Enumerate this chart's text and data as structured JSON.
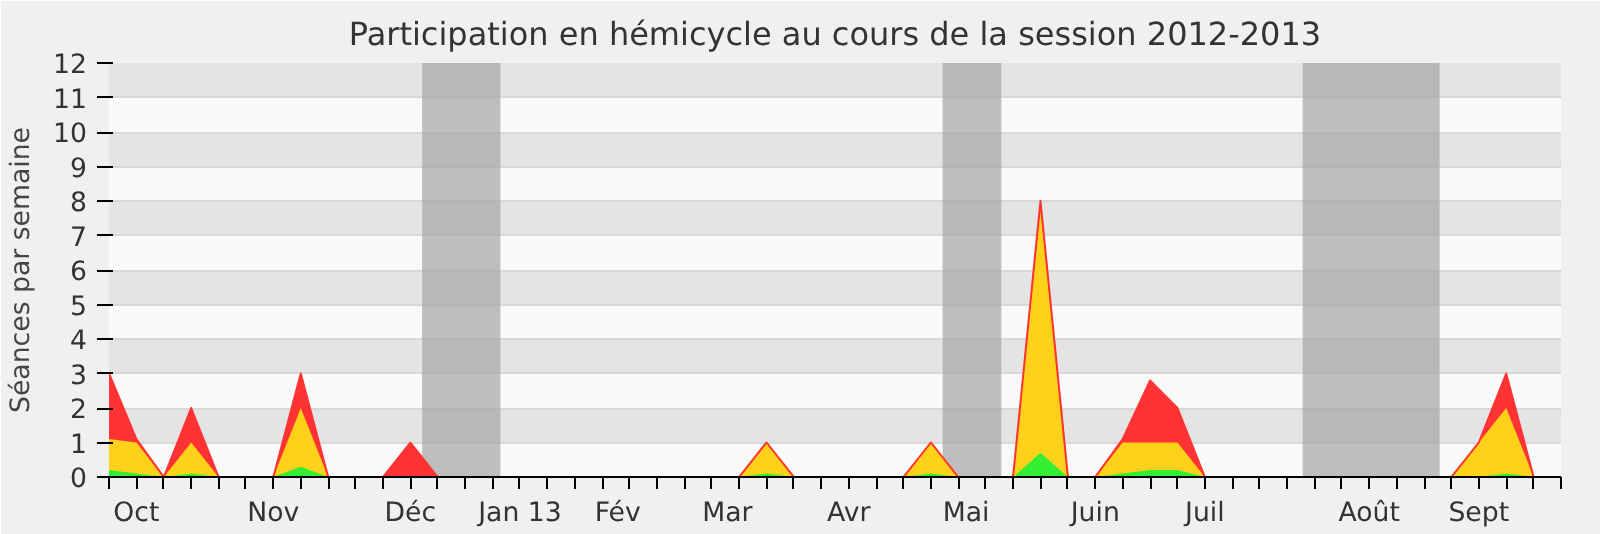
{
  "chart_data": {
    "type": "area",
    "stacked": true,
    "title": "Participation en hémicycle au cours de la session 2012-2013",
    "ylabel": "Séances par semaine",
    "x": [
      "2012-09-24",
      "2012-10-01",
      "2012-10-08",
      "2012-10-15",
      "2012-10-22",
      "2012-10-29",
      "2012-11-05",
      "2012-11-12",
      "2012-11-19",
      "2012-11-26",
      "2012-12-03",
      "2012-12-10",
      "2012-12-17",
      "2012-12-24",
      "2012-12-31",
      "2013-01-07",
      "2013-01-14",
      "2013-01-21",
      "2013-01-28",
      "2013-02-04",
      "2013-02-11",
      "2013-02-18",
      "2013-02-25",
      "2013-03-04",
      "2013-03-11",
      "2013-03-18",
      "2013-03-25",
      "2013-04-01",
      "2013-04-08",
      "2013-04-15",
      "2013-04-22",
      "2013-04-29",
      "2013-05-06",
      "2013-05-13",
      "2013-05-20",
      "2013-05-27",
      "2013-06-03",
      "2013-06-10",
      "2013-06-17",
      "2013-06-24",
      "2013-07-01",
      "2013-07-08",
      "2013-07-15",
      "2013-07-22",
      "2013-07-29",
      "2013-08-05",
      "2013-08-12",
      "2013-08-19",
      "2013-08-26",
      "2013-09-02",
      "2013-09-09",
      "2013-09-16",
      "2013-09-23"
    ],
    "series": [
      {
        "color": "#33ee33",
        "values": [
          0.2,
          0.1,
          0,
          0.1,
          0,
          0,
          0,
          0.3,
          0,
          0,
          0,
          0,
          0,
          0,
          0,
          0,
          0,
          0,
          0,
          0,
          0,
          0,
          0,
          0,
          0.1,
          0,
          0,
          0,
          0,
          0,
          0.1,
          0,
          0,
          0,
          0.7,
          0,
          0,
          0.1,
          0.2,
          0.2,
          0,
          0,
          0,
          0,
          0,
          0,
          0,
          0,
          0,
          0,
          0,
          0.1,
          0
        ]
      },
      {
        "color": "#ffd11a",
        "values": [
          0.9,
          0.9,
          0,
          0.9,
          0,
          0,
          0,
          1.7,
          0,
          0,
          0,
          0,
          0,
          0,
          0,
          0,
          0,
          0,
          0,
          0,
          0,
          0,
          0,
          0,
          0.9,
          0,
          0,
          0,
          0,
          0,
          0.9,
          0,
          0,
          0,
          7.1,
          0,
          0,
          0.9,
          0.8,
          0.8,
          0,
          0,
          0,
          0,
          0,
          0,
          0,
          0,
          0,
          0,
          1.0,
          1.9,
          0
        ]
      },
      {
        "color": "#ff3333",
        "values": [
          1.9,
          0.1,
          0,
          1.0,
          0,
          0,
          0,
          1.0,
          0,
          0,
          0,
          1.0,
          0,
          0,
          0,
          0,
          0,
          0,
          0,
          0,
          0,
          0,
          0,
          0,
          0,
          0,
          0,
          0,
          0,
          0,
          0,
          0,
          0,
          0,
          0.2,
          0,
          0,
          0.1,
          1.8,
          1.0,
          0,
          0,
          0,
          0,
          0,
          0,
          0,
          0,
          0,
          0,
          0,
          1.0,
          0
        ]
      }
    ],
    "xlim": [
      "2012-09-24",
      "2013-09-30"
    ],
    "ylim": [
      0,
      12
    ],
    "xticks": [
      {
        "value": "2012-10-01",
        "label": "Oct"
      },
      {
        "value": "2012-11-05",
        "label": "Nov"
      },
      {
        "value": "2012-12-10",
        "label": "Déc"
      },
      {
        "value": "2013-01-07",
        "label": "Jan 13"
      },
      {
        "value": "2013-02-01",
        "label": "Fév"
      },
      {
        "value": "2013-03-01",
        "label": "Mar"
      },
      {
        "value": "2013-04-01",
        "label": "Avr"
      },
      {
        "value": "2013-05-01",
        "label": "Mai"
      },
      {
        "value": "2013-06-03",
        "label": "Juin"
      },
      {
        "value": "2013-07-01",
        "label": "Juil"
      },
      {
        "value": "2013-08-12",
        "label": "Août"
      },
      {
        "value": "2013-09-09",
        "label": "Sept"
      },
      {
        "value": "2012-09-24",
        "label": null
      },
      {
        "value": "2012-10-01",
        "label": null
      },
      {
        "value": "2012-10-08",
        "label": null
      },
      {
        "value": "2012-10-15",
        "label": null
      },
      {
        "value": "2012-10-22",
        "label": null
      },
      {
        "value": "2012-10-29",
        "label": null
      },
      {
        "value": "2012-11-05",
        "label": null
      },
      {
        "value": "2012-11-12",
        "label": null
      },
      {
        "value": "2012-11-19",
        "label": null
      },
      {
        "value": "2012-11-26",
        "label": null
      },
      {
        "value": "2012-12-03",
        "label": null
      },
      {
        "value": "2012-12-10",
        "label": null
      },
      {
        "value": "2012-12-17",
        "label": null
      },
      {
        "value": "2012-12-24",
        "label": null
      },
      {
        "value": "2012-12-31",
        "label": null
      },
      {
        "value": "2013-01-07",
        "label": null
      },
      {
        "value": "2013-01-14",
        "label": null
      },
      {
        "value": "2013-01-21",
        "label": null
      },
      {
        "value": "2013-01-28",
        "label": null
      },
      {
        "value": "2013-02-04",
        "label": null
      },
      {
        "value": "2013-02-11",
        "label": null
      },
      {
        "value": "2013-02-18",
        "label": null
      },
      {
        "value": "2013-02-25",
        "label": null
      },
      {
        "value": "2013-03-04",
        "label": null
      },
      {
        "value": "2013-03-11",
        "label": null
      },
      {
        "value": "2013-03-18",
        "label": null
      },
      {
        "value": "2013-03-25",
        "label": null
      },
      {
        "value": "2013-04-01",
        "label": null
      },
      {
        "value": "2013-04-08",
        "label": null
      },
      {
        "value": "2013-04-15",
        "label": null
      },
      {
        "value": "2013-04-22",
        "label": null
      },
      {
        "value": "2013-04-29",
        "label": null
      },
      {
        "value": "2013-05-06",
        "label": null
      },
      {
        "value": "2013-05-13",
        "label": null
      },
      {
        "value": "2013-05-20",
        "label": null
      },
      {
        "value": "2013-05-27",
        "label": null
      },
      {
        "value": "2013-06-03",
        "label": null
      },
      {
        "value": "2013-06-10",
        "label": null
      },
      {
        "value": "2013-06-17",
        "label": null
      },
      {
        "value": "2013-06-24",
        "label": null
      },
      {
        "value": "2013-07-01",
        "label": null
      },
      {
        "value": "2013-07-08",
        "label": null
      },
      {
        "value": "2013-07-15",
        "label": null
      },
      {
        "value": "2013-07-22",
        "label": null
      },
      {
        "value": "2013-07-29",
        "label": null
      },
      {
        "value": "2013-08-05",
        "label": null
      },
      {
        "value": "2013-08-12",
        "label": null
      },
      {
        "value": "2013-08-19",
        "label": null
      },
      {
        "value": "2013-08-26",
        "label": null
      },
      {
        "value": "2013-09-02",
        "label": null
      },
      {
        "value": "2013-09-09",
        "label": null
      },
      {
        "value": "2013-09-16",
        "label": null
      },
      {
        "value": "2013-09-23",
        "label": null
      },
      {
        "value": "2013-09-30",
        "label": null
      }
    ],
    "yticks": [
      0,
      1,
      2,
      3,
      4,
      5,
      6,
      7,
      8,
      9,
      10,
      11,
      12
    ],
    "grid": "y",
    "bands": [
      {
        "axis": "x",
        "from": "2012-12-13",
        "to": "2013-01-02",
        "color": "#aaaaaa"
      },
      {
        "axis": "x",
        "from": "2013-04-25",
        "to": "2013-05-10",
        "color": "#aaaaaa"
      },
      {
        "axis": "x",
        "from": "2013-07-26",
        "to": "2013-08-30",
        "color": "#aaaaaa"
      }
    ]
  }
}
